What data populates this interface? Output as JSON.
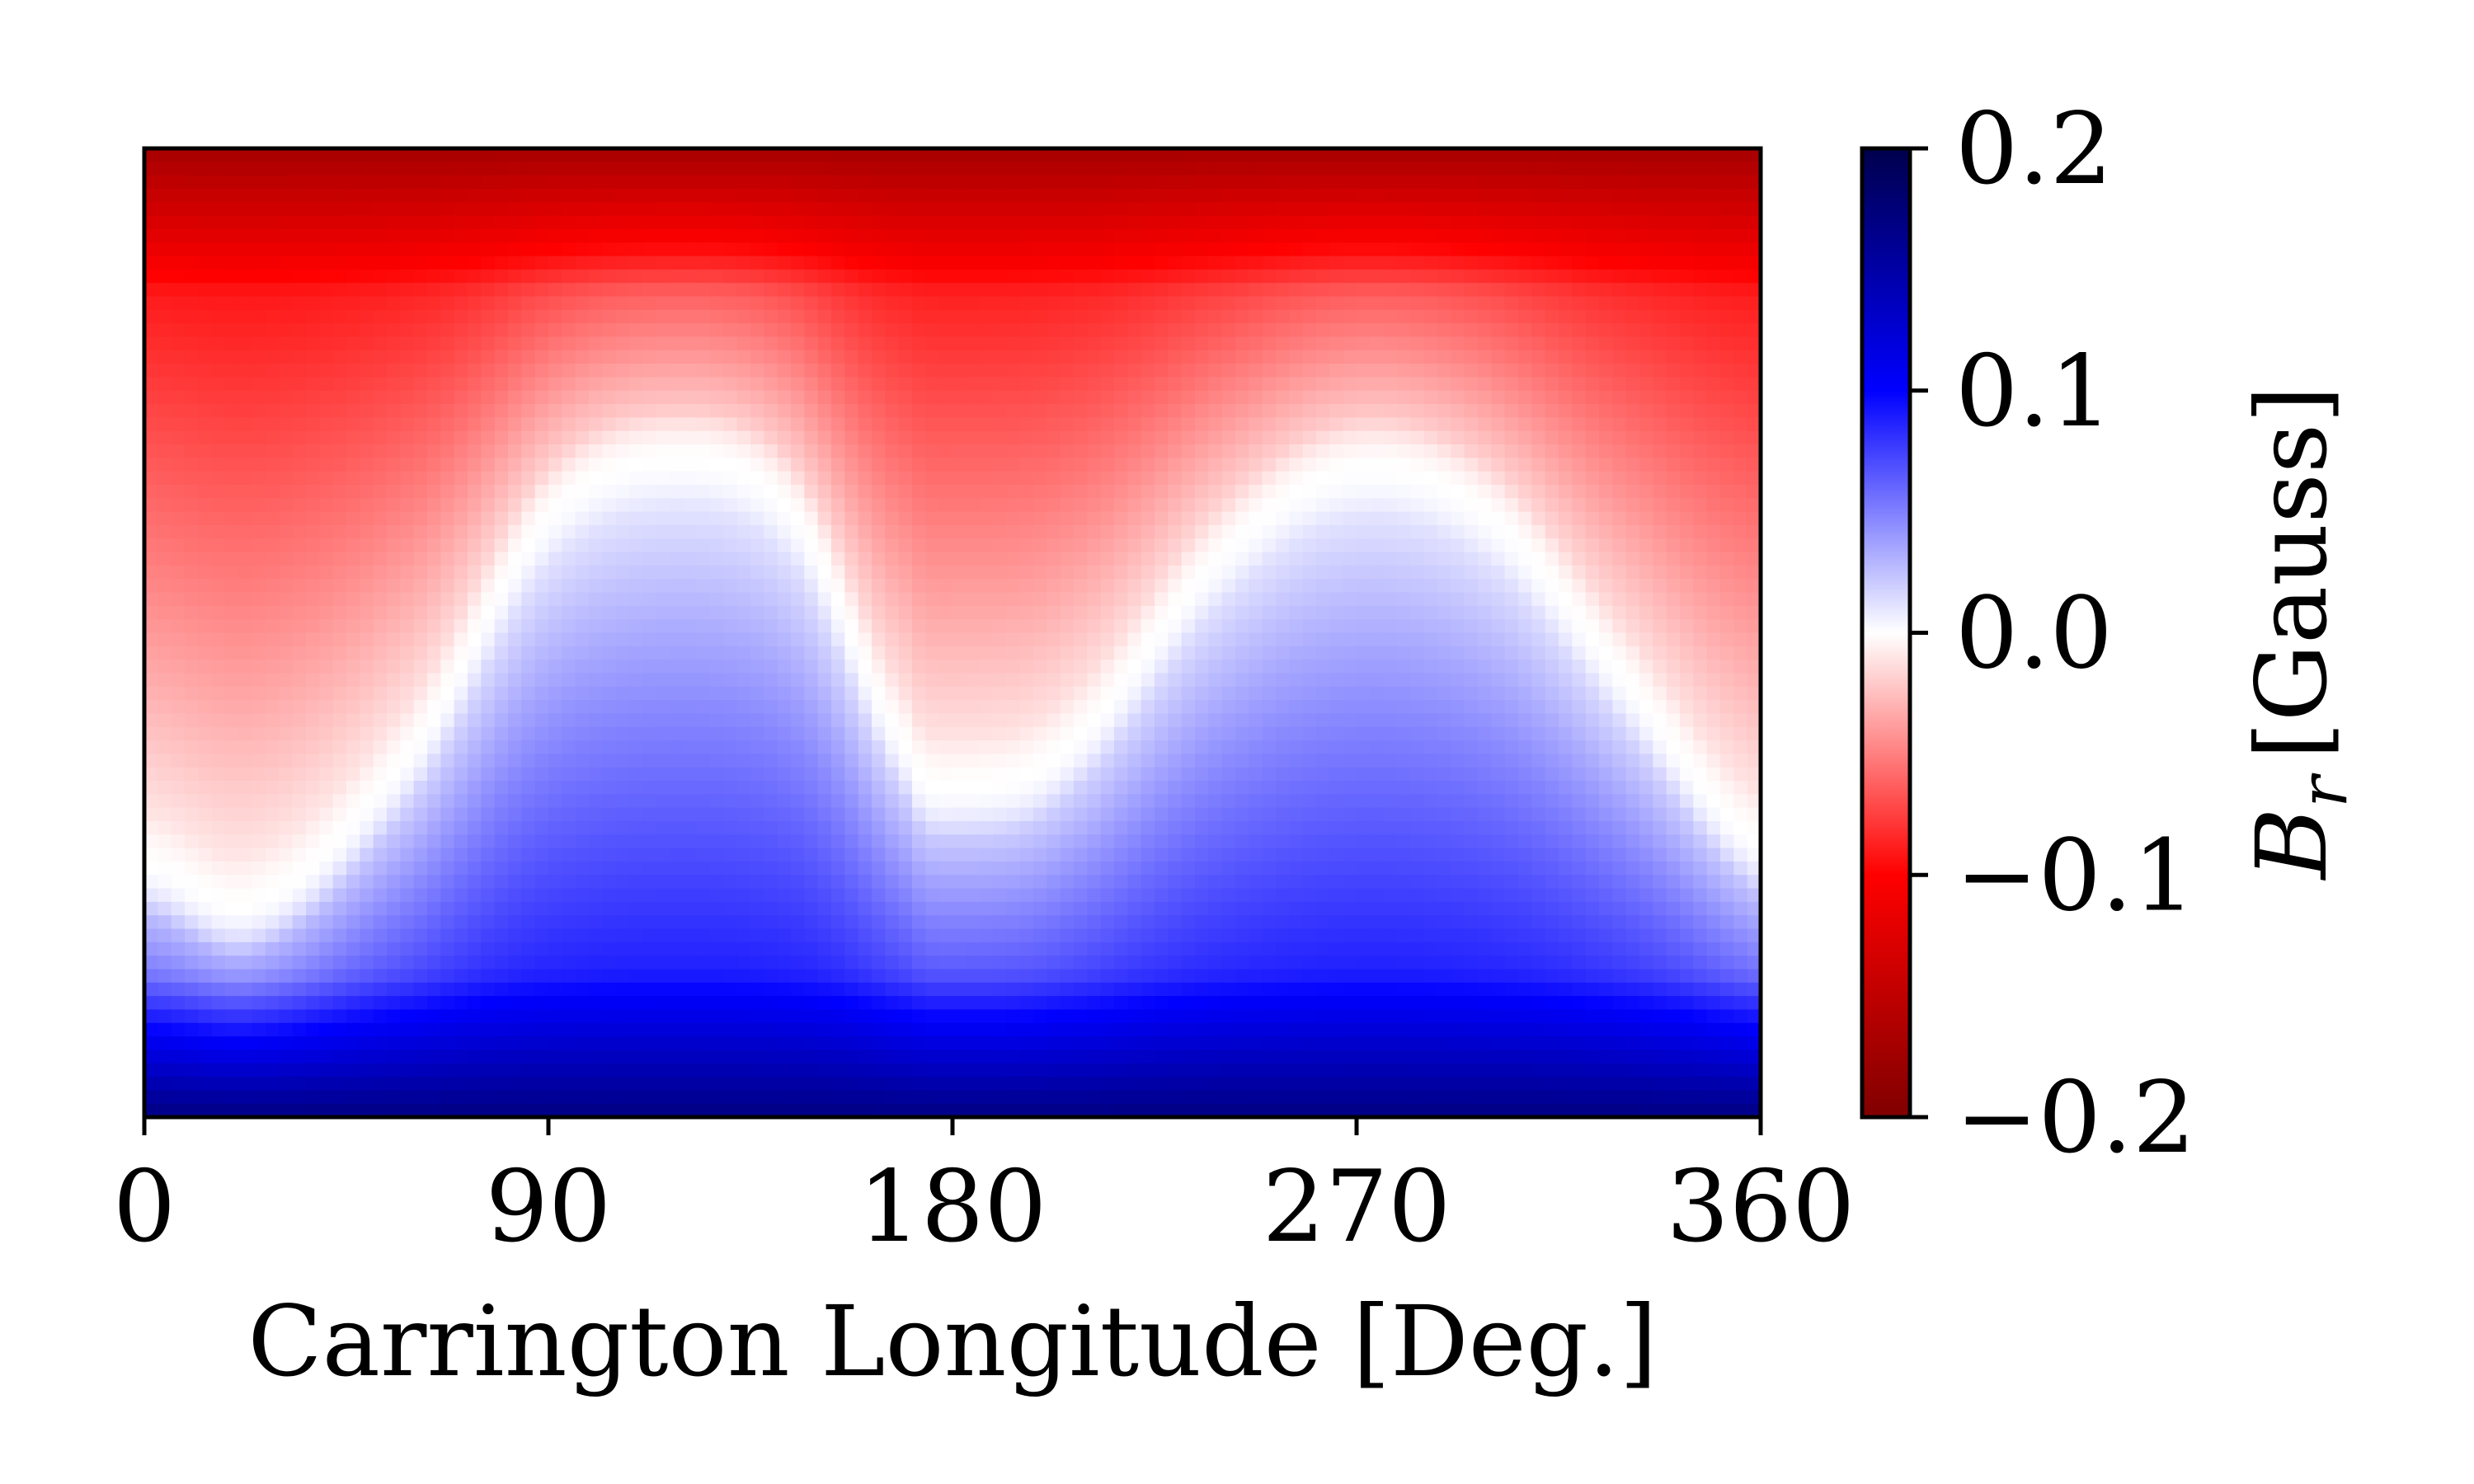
{
  "chart_data": {
    "type": "heatmap",
    "title": "",
    "xlabel": "Carrington Longitude [Deg.]",
    "ylabel": "",
    "xlim": [
      0,
      360
    ],
    "x_ticks": [
      "0",
      "90",
      "180",
      "270",
      "360"
    ],
    "x_tick_values": [
      0,
      90,
      180,
      270,
      360
    ],
    "y_ticks": [],
    "colorbar": {
      "label_symbol": "B",
      "label_subscript": "r",
      "label_unit": "[Gauss]",
      "range": [
        -0.2,
        0.2
      ],
      "ticks": [
        "0.2",
        "0.1",
        "0.0",
        "−0.1",
        "−0.2"
      ],
      "tick_values": [
        0.2,
        0.1,
        0.0,
        -0.1,
        -0.2
      ],
      "colormap": "seismic_r",
      "colormap_stops": [
        {
          "value": -0.2,
          "color": "#800000"
        },
        {
          "value": -0.1,
          "color": "#ff0000"
        },
        {
          "value": 0.0,
          "color": "#ffffff"
        },
        {
          "value": 0.1,
          "color": "#0000ff"
        },
        {
          "value": 0.2,
          "color": "#00004c"
        }
      ]
    },
    "description_of_field": {
      "polarity_inversion_line_longitude": [
        0,
        25,
        60,
        90,
        120,
        145,
        170,
        180,
        205,
        240,
        270,
        300,
        330,
        360
      ],
      "polarity_inversion_line_fraction_from_top": [
        0.74,
        0.78,
        0.62,
        0.38,
        0.32,
        0.38,
        0.62,
        0.66,
        0.62,
        0.42,
        0.33,
        0.38,
        0.55,
        0.72
      ]
    }
  }
}
